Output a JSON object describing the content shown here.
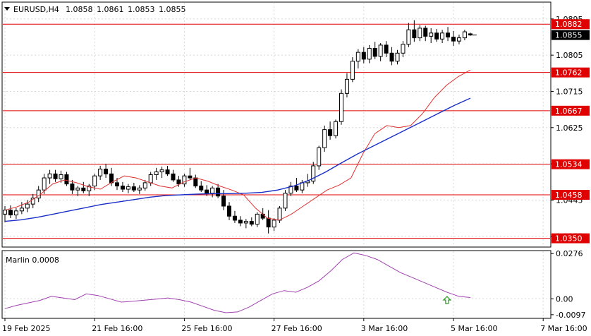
{
  "header": {
    "symbol": "EURUSD,H4",
    "open": "1.0858",
    "high": "1.0861",
    "low": "1.0853",
    "close": "1.0855"
  },
  "colors": {
    "bull": "#ffffff",
    "bear": "#000000",
    "wick": "#000000",
    "ma_fast": "#e03030",
    "ma_slow": "#1a2fc8",
    "level_line": "#e00000",
    "level_label_bg": "#e00000",
    "level_label_text": "#ffffff",
    "current_label_bg": "#000000",
    "oscillator": "#a040b0",
    "grid": "#d8d8d8",
    "signal_arrow": "#2a9a2a"
  },
  "chart_data": [
    {
      "type": "candlestick",
      "title": "EURUSD,H4",
      "ylim": [
        1.033,
        1.0935
      ],
      "y_ticks": [
        "1.0895",
        "1.0805",
        "1.0715",
        "1.0625",
        "1.0535",
        "1.0445",
        "1.0355"
      ],
      "levels": [
        {
          "value": 1.0882,
          "label": "1.0882"
        },
        {
          "value": 1.0762,
          "label": "1.0762"
        },
        {
          "value": 1.0667,
          "label": "1.0667"
        },
        {
          "value": 1.0534,
          "label": "1.0534"
        },
        {
          "value": 1.0458,
          "label": "1.0458"
        },
        {
          "value": 1.035,
          "label": "1.0350"
        }
      ],
      "current_price": {
        "value": 1.0855,
        "label": "1.0855"
      },
      "x_ticks": [
        {
          "index": 0,
          "label": "19 Feb 2025"
        },
        {
          "index": 16,
          "label": "21 Feb 16:00"
        },
        {
          "index": 32,
          "label": "25 Feb 16:00"
        },
        {
          "index": 48,
          "label": "27 Feb 16:00"
        },
        {
          "index": 64,
          "label": "3 Mar 16:00"
        },
        {
          "index": 80,
          "label": "5 Mar 16:00"
        },
        {
          "index": 96,
          "label": "7 Mar 16:00"
        }
      ],
      "candles": [
        [
          1.041,
          1.043,
          1.039,
          1.042
        ],
        [
          1.042,
          1.0432,
          1.04,
          1.0408
        ],
        [
          1.0408,
          1.0425,
          1.0398,
          1.0418
        ],
        [
          1.0418,
          1.044,
          1.041,
          1.0425
        ],
        [
          1.0425,
          1.0445,
          1.0415,
          1.0435
        ],
        [
          1.0435,
          1.046,
          1.0425,
          1.045
        ],
        [
          1.045,
          1.048,
          1.044,
          1.047
        ],
        [
          1.047,
          1.051,
          1.046,
          1.05
        ],
        [
          1.05,
          1.052,
          1.0485,
          1.051
        ],
        [
          1.051,
          1.052,
          1.049,
          1.0498
        ],
        [
          1.0498,
          1.0518,
          1.0488,
          1.0508
        ],
        [
          1.0508,
          1.0515,
          1.048,
          1.0485
        ],
        [
          1.0485,
          1.0495,
          1.046,
          1.047
        ],
        [
          1.047,
          1.048,
          1.0455,
          1.0475
        ],
        [
          1.0475,
          1.049,
          1.0462,
          1.0468
        ],
        [
          1.0468,
          1.0485,
          1.0455,
          1.048
        ],
        [
          1.048,
          1.051,
          1.047,
          1.0505
        ],
        [
          1.0505,
          1.053,
          1.0495,
          1.0522
        ],
        [
          1.0522,
          1.0535,
          1.05,
          1.051
        ],
        [
          1.051,
          1.0525,
          1.048,
          1.0488
        ],
        [
          1.0488,
          1.05,
          1.047,
          1.048
        ],
        [
          1.048,
          1.049,
          1.0465,
          1.0472
        ],
        [
          1.0472,
          1.0485,
          1.0462,
          1.0478
        ],
        [
          1.0478,
          1.0488,
          1.0465,
          1.047
        ],
        [
          1.047,
          1.0482,
          1.046,
          1.0475
        ],
        [
          1.0475,
          1.0495,
          1.0468,
          1.0488
        ],
        [
          1.0488,
          1.0515,
          1.048,
          1.0508
        ],
        [
          1.0508,
          1.0525,
          1.0495,
          1.0515
        ],
        [
          1.0515,
          1.0528,
          1.05,
          1.052
        ],
        [
          1.052,
          1.053,
          1.0505,
          1.051
        ],
        [
          1.051,
          1.052,
          1.049,
          1.0495
        ],
        [
          1.0495,
          1.0505,
          1.0478,
          1.0485
        ],
        [
          1.0485,
          1.051,
          1.0478,
          1.0505
        ],
        [
          1.0505,
          1.0525,
          1.0495,
          1.05
        ],
        [
          1.05,
          1.0508,
          1.0475,
          1.048
        ],
        [
          1.048,
          1.0492,
          1.0465,
          1.047
        ],
        [
          1.047,
          1.0482,
          1.0455,
          1.0462
        ],
        [
          1.0462,
          1.048,
          1.0452,
          1.0475
        ],
        [
          1.0475,
          1.0485,
          1.045,
          1.0455
        ],
        [
          1.0455,
          1.047,
          1.042,
          1.043
        ],
        [
          1.043,
          1.044,
          1.0395,
          1.0405
        ],
        [
          1.0405,
          1.0418,
          1.0388,
          1.0395
        ],
        [
          1.0395,
          1.0405,
          1.038,
          1.0388
        ],
        [
          1.0388,
          1.0398,
          1.0375,
          1.0392
        ],
        [
          1.0392,
          1.0402,
          1.038,
          1.0385
        ],
        [
          1.0385,
          1.0415,
          1.0378,
          1.041
        ],
        [
          1.041,
          1.0425,
          1.0395,
          1.04
        ],
        [
          1.04,
          1.042,
          1.0362,
          1.0378
        ],
        [
          1.0378,
          1.04,
          1.0368,
          1.0395
        ],
        [
          1.0395,
          1.043,
          1.0388,
          1.0425
        ],
        [
          1.0425,
          1.047,
          1.0418,
          1.0462
        ],
        [
          1.0462,
          1.049,
          1.0455,
          1.048
        ],
        [
          1.048,
          1.05,
          1.0465,
          1.047
        ],
        [
          1.047,
          1.0495,
          1.0462,
          1.0488
        ],
        [
          1.0488,
          1.051,
          1.0478,
          1.0492
        ],
        [
          1.0492,
          1.054,
          1.0485,
          1.053
        ],
        [
          1.053,
          1.058,
          1.052,
          1.0575
        ],
        [
          1.0575,
          1.063,
          1.0565,
          1.062
        ],
        [
          1.062,
          1.064,
          1.0595,
          1.0605
        ],
        [
          1.0605,
          1.0645,
          1.0598,
          1.064
        ],
        [
          1.064,
          1.072,
          1.0632,
          1.071
        ],
        [
          1.071,
          1.076,
          1.07,
          1.0745
        ],
        [
          1.0745,
          1.08,
          1.0738,
          1.079
        ],
        [
          1.079,
          1.082,
          1.0772,
          1.0812
        ],
        [
          1.0812,
          1.0825,
          1.0785,
          1.0795
        ],
        [
          1.0795,
          1.083,
          1.0785,
          1.0822
        ],
        [
          1.0822,
          1.0838,
          1.0795,
          1.0802
        ],
        [
          1.0802,
          1.0835,
          1.079,
          1.083
        ],
        [
          1.083,
          1.084,
          1.08,
          1.081
        ],
        [
          1.081,
          1.0825,
          1.078,
          1.079
        ],
        [
          1.079,
          1.0818,
          1.0782,
          1.081
        ],
        [
          1.081,
          1.084,
          1.08,
          1.0832
        ],
        [
          1.0832,
          1.0885,
          1.0825,
          1.0868
        ],
        [
          1.0868,
          1.0892,
          1.0838,
          1.0848
        ],
        [
          1.0848,
          1.088,
          1.084,
          1.0872
        ],
        [
          1.0872,
          1.0878,
          1.084,
          1.0852
        ],
        [
          1.0852,
          1.0872,
          1.0835,
          1.086
        ],
        [
          1.086,
          1.087,
          1.0838,
          1.0845
        ],
        [
          1.0845,
          1.0868,
          1.0835,
          1.086
        ],
        [
          1.086,
          1.0875,
          1.084,
          1.085
        ],
        [
          1.085,
          1.0865,
          1.0828,
          1.084
        ],
        [
          1.084,
          1.0856,
          1.0832,
          1.0848
        ],
        [
          1.0848,
          1.0868,
          1.0842,
          1.0863
        ],
        [
          1.0858,
          1.0861,
          1.0853,
          1.0855
        ]
      ],
      "ma_fast": [
        1.042,
        1.0428,
        1.044,
        1.046,
        1.0485,
        1.0495,
        1.0488,
        1.0478,
        1.0472,
        1.049,
        1.0505,
        1.05,
        1.049,
        1.048,
        1.0475,
        1.049,
        1.05,
        1.0492,
        1.048,
        1.047,
        1.0458,
        1.0425,
        1.04,
        1.0395,
        1.041,
        1.043,
        1.045,
        1.047,
        1.0482,
        1.05,
        1.056,
        1.061,
        1.063,
        1.0625,
        1.063,
        1.066,
        1.07,
        1.073,
        1.0752,
        1.0768
      ],
      "ma_slow": [
        1.0392,
        1.0396,
        1.0402,
        1.041,
        1.0418,
        1.0426,
        1.0434,
        1.044,
        1.0446,
        1.0452,
        1.0456,
        1.0458,
        1.046,
        1.0461,
        1.0461,
        1.0462,
        1.0464,
        1.047,
        1.048,
        1.0495,
        1.0515,
        1.0538,
        1.056,
        1.058,
        1.06,
        1.062,
        1.064,
        1.066,
        1.068,
        1.0698
      ]
    },
    {
      "type": "line",
      "title": "Marlin 0.0008",
      "ylim": [
        -0.0115,
        0.029
      ],
      "y_ticks": [
        {
          "value": 0.0276,
          "label": "0.0276"
        },
        {
          "value": 0.0,
          "label": "0.00"
        },
        {
          "value": -0.0097,
          "label": "-0.0097"
        }
      ],
      "series": [
        {
          "values": [
            -0.006,
            -0.004,
            -0.0025,
            -0.001,
            0.0015,
            0.0005,
            -0.0005,
            0.003,
            0.002,
            0.0,
            -0.002,
            -0.0015,
            -0.0008,
            -0.0002,
            0.0005,
            -0.0005,
            -0.002,
            -0.0045,
            -0.007,
            -0.0085,
            -0.008,
            -0.005,
            -0.001,
            0.003,
            0.005,
            0.004,
            0.007,
            0.011,
            0.017,
            0.024,
            0.028,
            0.0265,
            0.024,
            0.02,
            0.016,
            0.013,
            0.01,
            0.007,
            0.004,
            0.0015,
            0.0008
          ]
        }
      ],
      "signal": {
        "index": 38,
        "direction": "up"
      }
    }
  ]
}
